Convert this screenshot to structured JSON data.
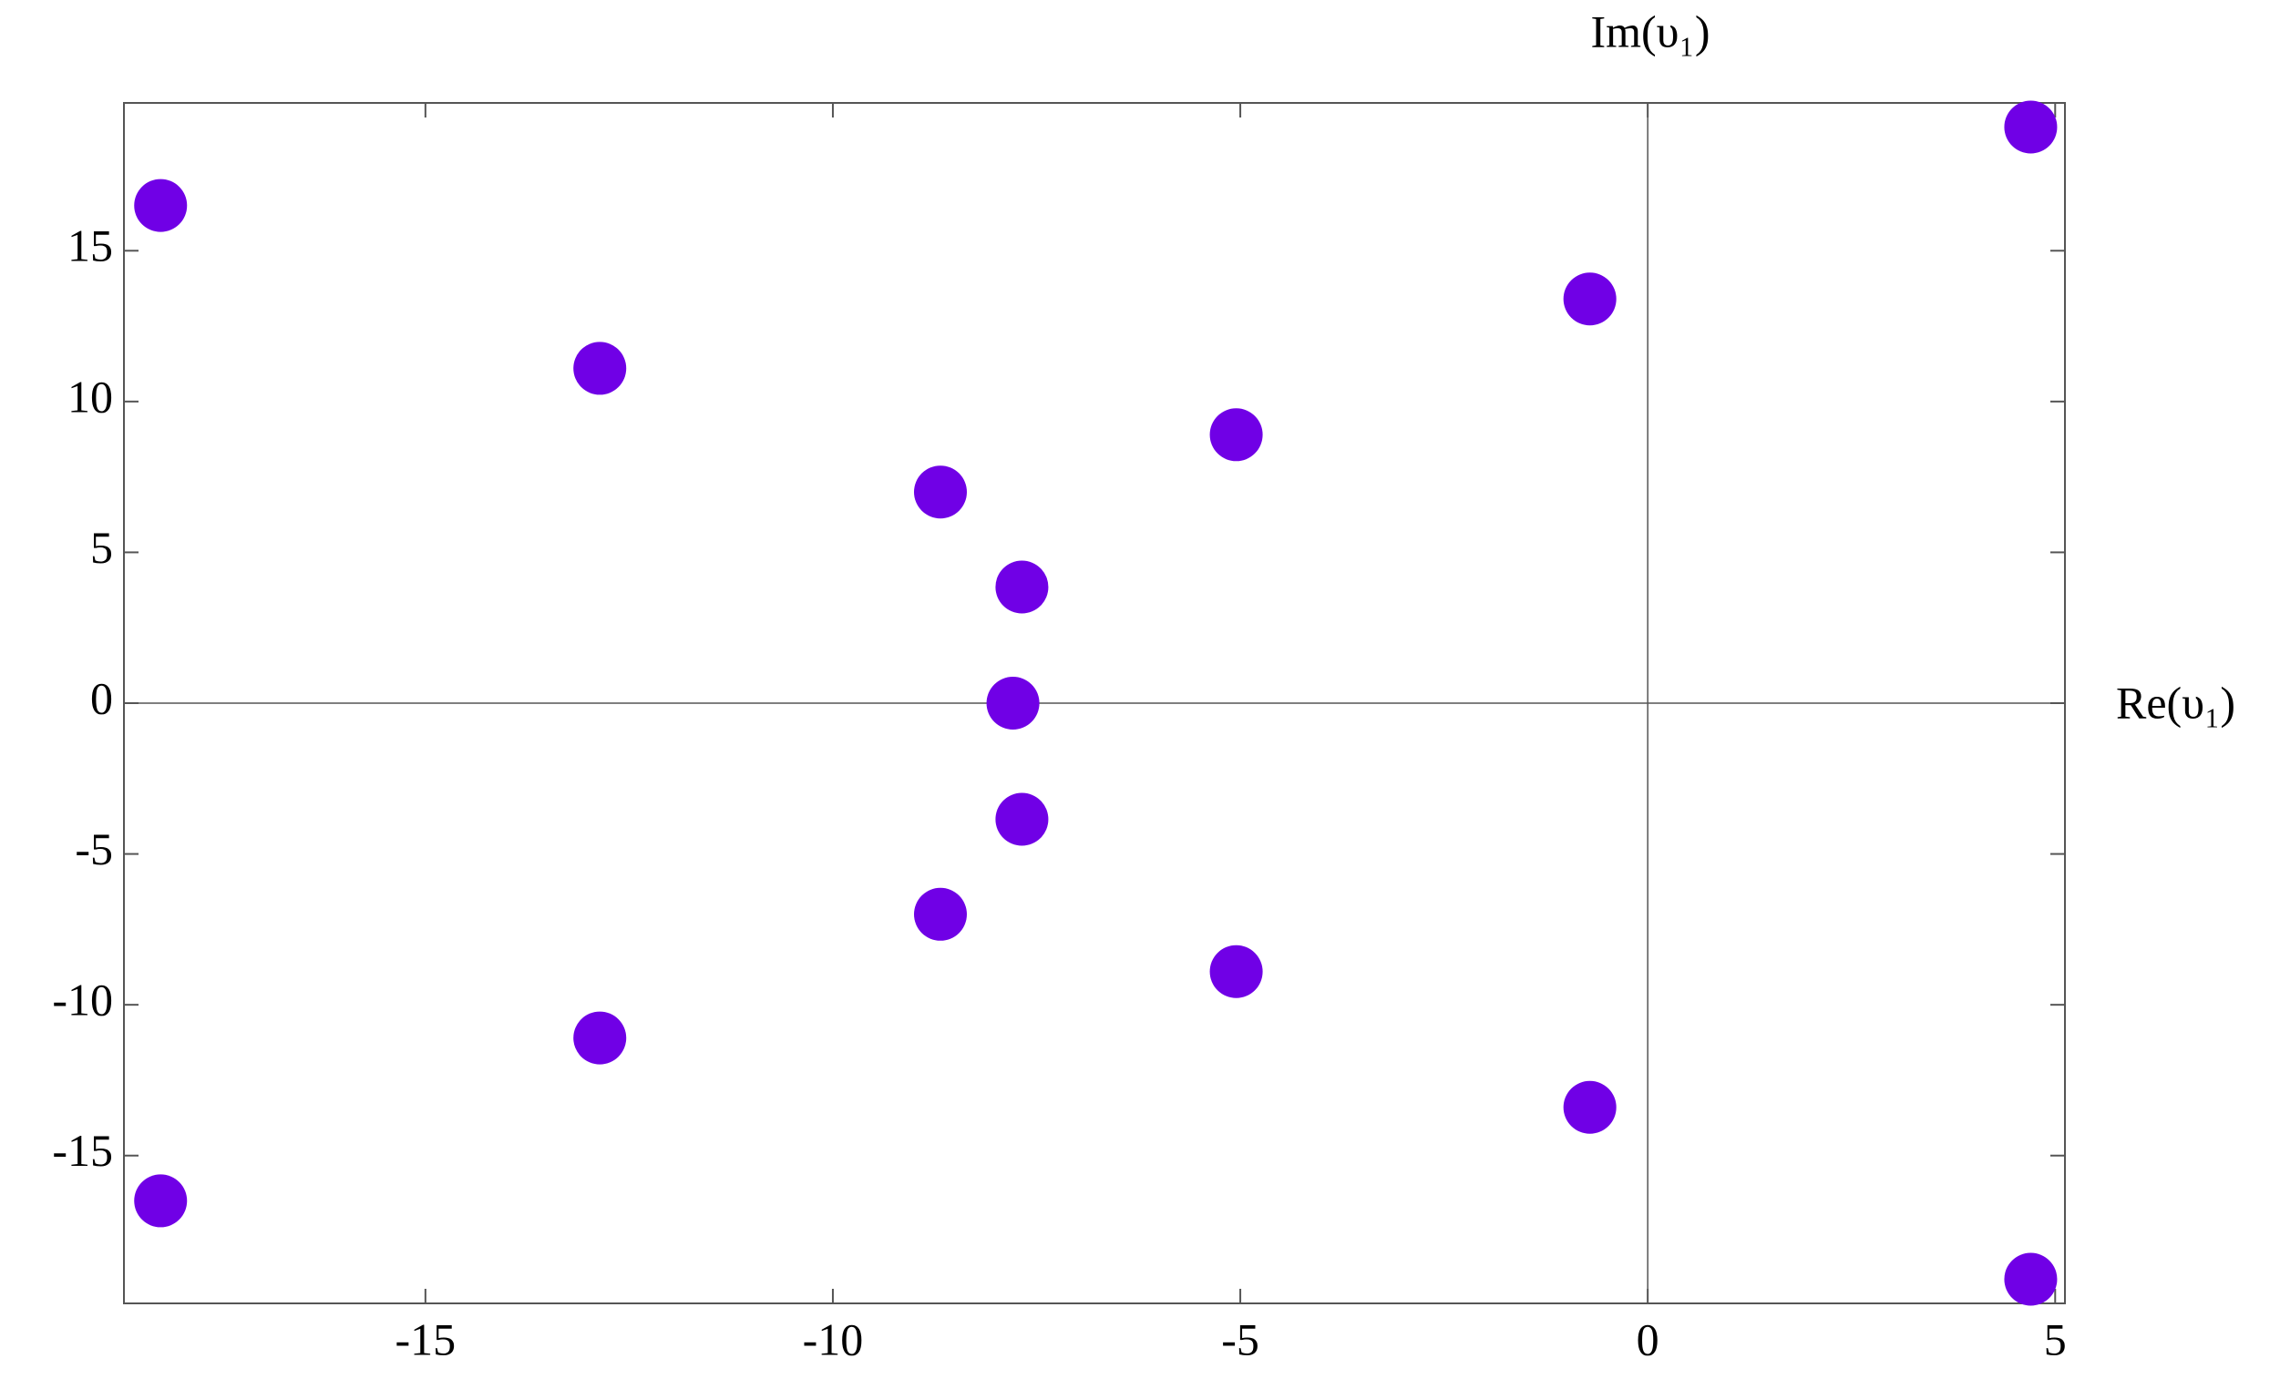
{
  "chart_data": {
    "type": "scatter",
    "x_label": "Re(υ₁)",
    "y_label": "Im(υ₁)",
    "series": [
      {
        "color": "#7000e6",
        "x": [
          -18.25,
          4.7,
          -12.86,
          -0.71,
          -5.05,
          -8.68,
          -7.68,
          -7.79,
          -7.68,
          -8.68,
          -5.05,
          -0.71,
          -12.86,
          4.7,
          -18.25
        ],
        "values": [
          16.5,
          19.1,
          11.1,
          13.4,
          8.9,
          7.0,
          3.85,
          0,
          -3.85,
          -7.0,
          -8.9,
          -13.4,
          -11.1,
          -19.1,
          -16.5
        ]
      }
    ],
    "xlim": [
      -18.7,
      5.12
    ],
    "ylim": [
      -19.9,
      19.9
    ],
    "xticks": [
      -15,
      -10,
      -5,
      0,
      5
    ],
    "yticks": [
      -15,
      -10,
      -5,
      0,
      5,
      10,
      15
    ],
    "axes_through_origin": true
  }
}
